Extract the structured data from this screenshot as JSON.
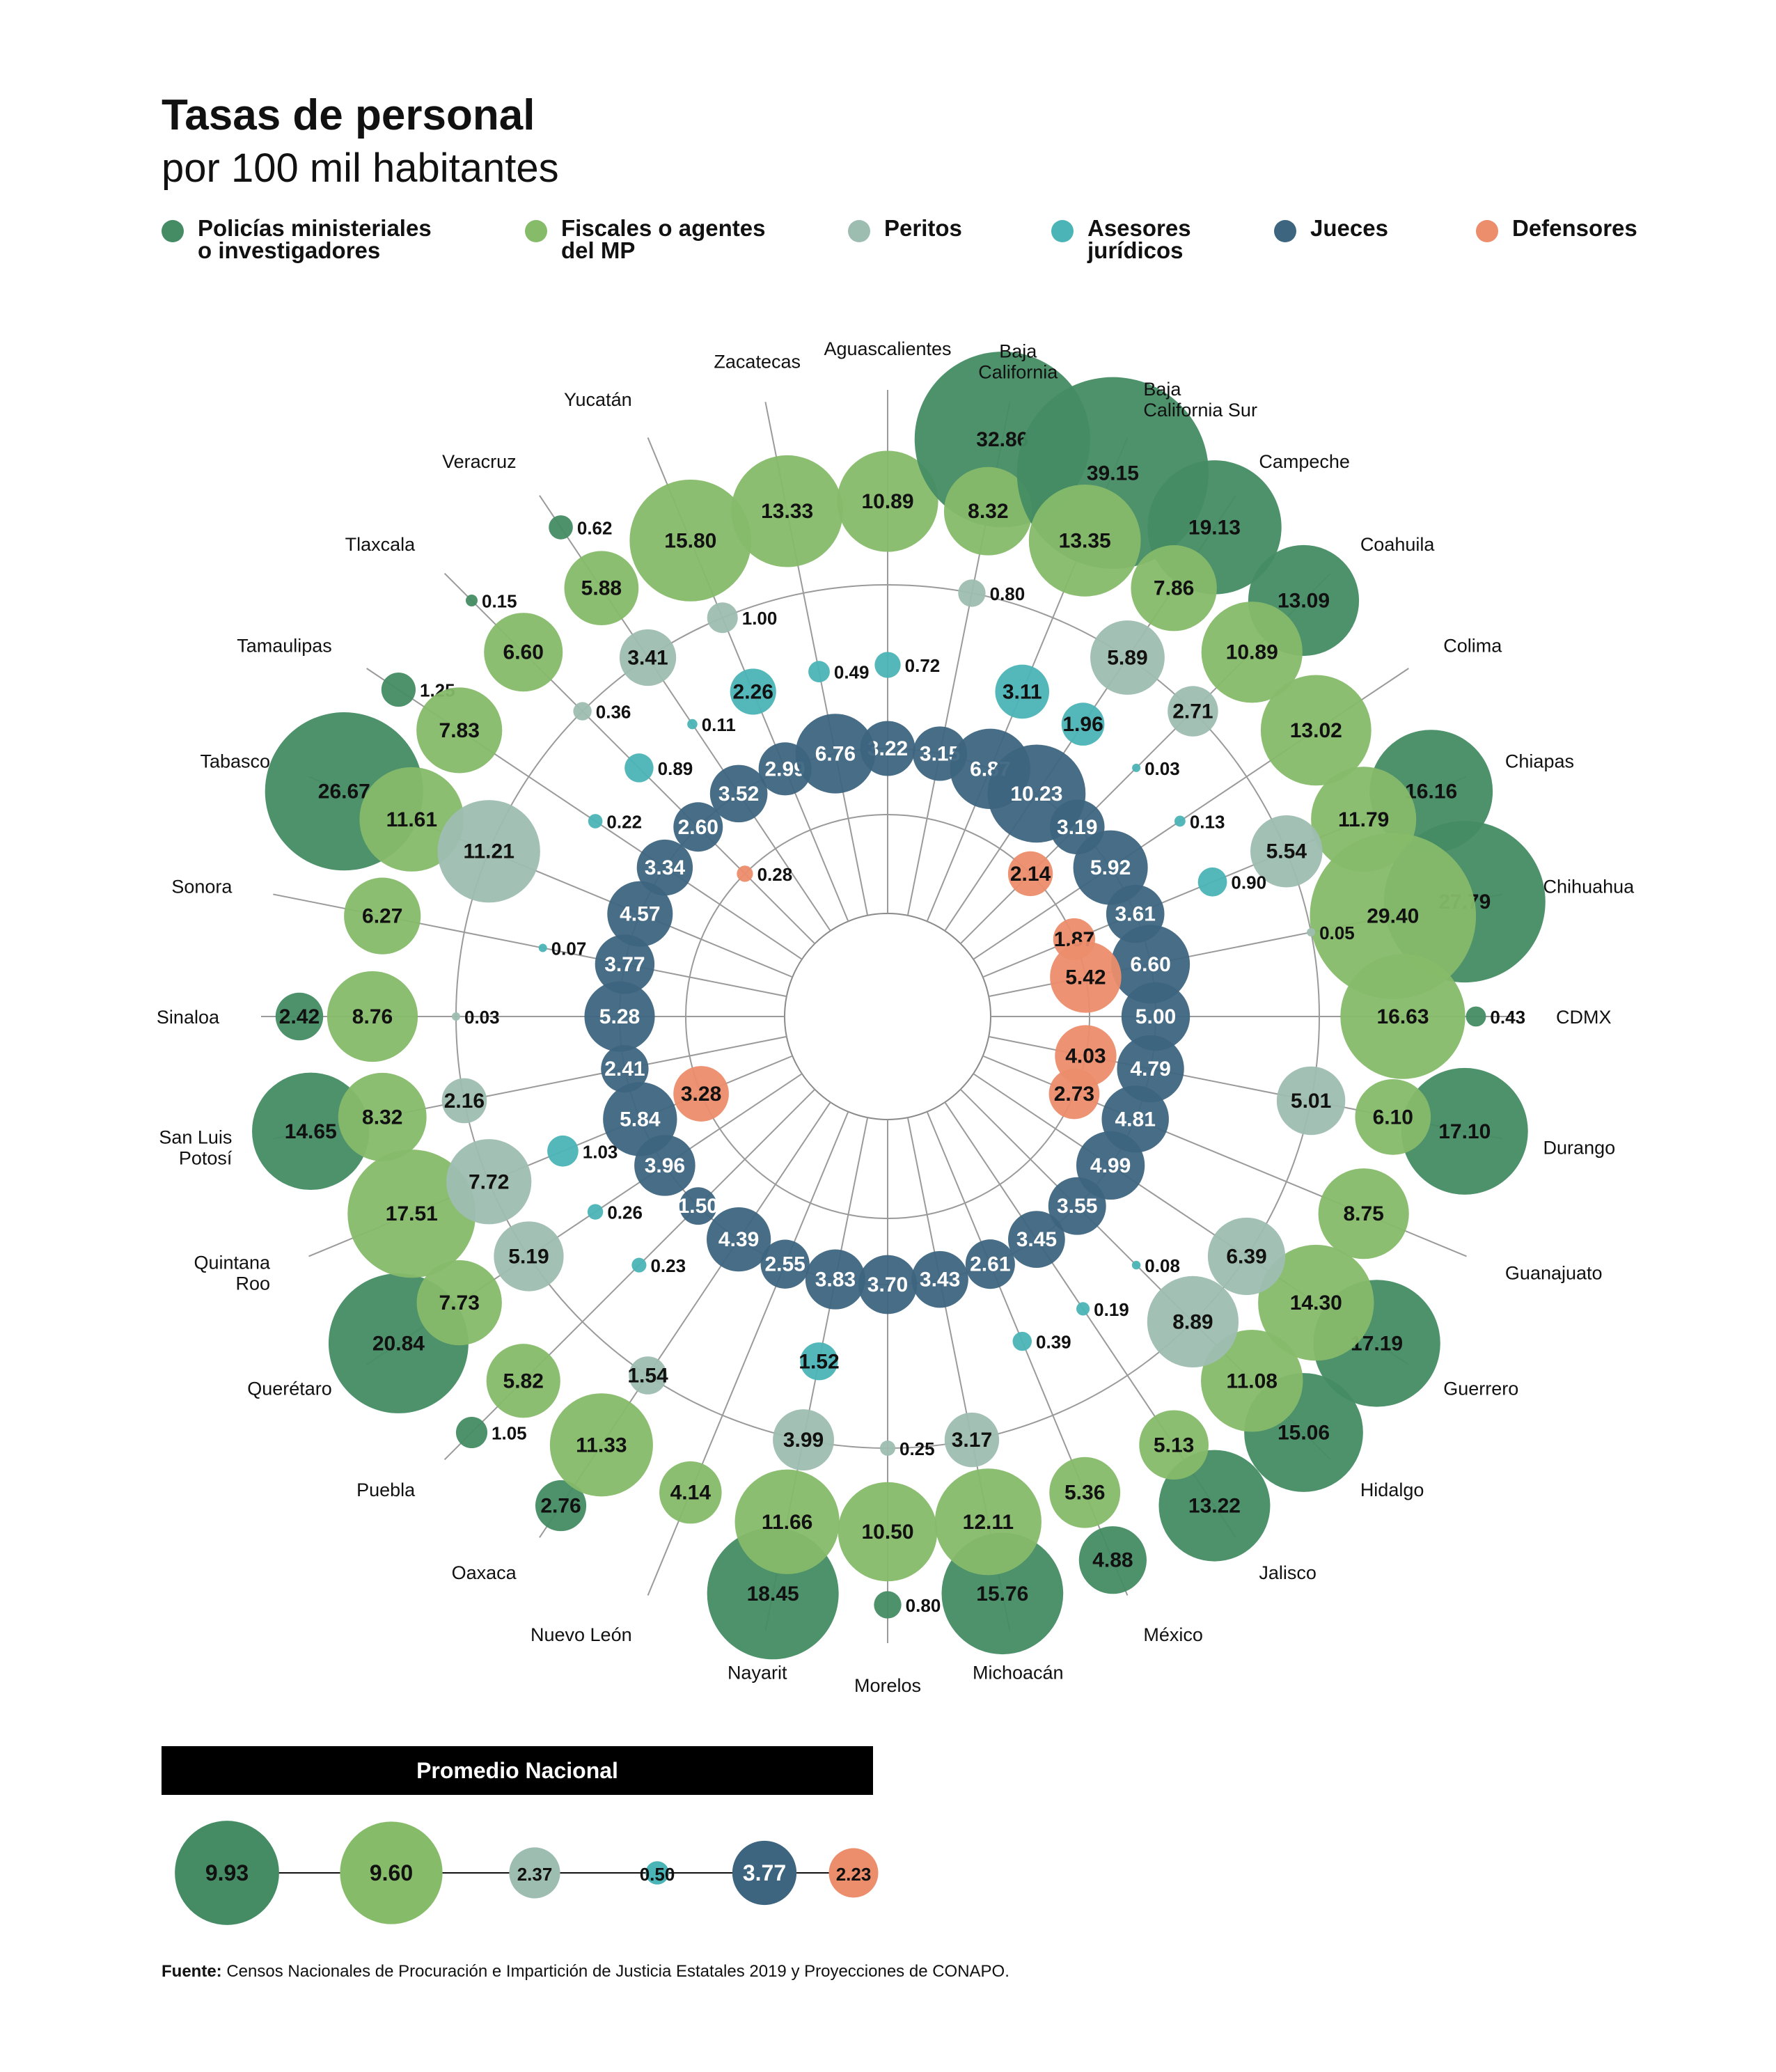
{
  "title": "Tasas de personal",
  "subtitle": "por 100 mil habitantes",
  "legend": [
    {
      "key": "policias",
      "label": "Policías ministeriales\no investigadores",
      "color": "#458c64"
    },
    {
      "key": "fiscales",
      "label": "Fiscales o agentes\ndel MP",
      "color": "#86bb6a"
    },
    {
      "key": "peritos",
      "label": "Peritos",
      "color": "#9ebdb1"
    },
    {
      "key": "asesores",
      "label": "Asesores\njurídicos",
      "color": "#4bb4b6"
    },
    {
      "key": "jueces",
      "label": "Jueces",
      "color": "#3e6580"
    },
    {
      "key": "defensores",
      "label": "Defensores",
      "color": "#ec8d6c"
    }
  ],
  "chart_data": {
    "type": "radial bubble",
    "series": [
      "Policías ministeriales o investigadores",
      "Fiscales o agentes del MP",
      "Peritos",
      "Asesores jurídicos",
      "Jueces",
      "Defensores"
    ],
    "states": [
      {
        "name": "Aguascalientes",
        "values": {
          "policias": null,
          "fiscales": 10.89,
          "peritos": null,
          "asesores": 0.72,
          "jueces": 3.22,
          "defensores": null
        }
      },
      {
        "name": "Baja\nCalifornia",
        "values": {
          "policias": 32.86,
          "fiscales": 8.32,
          "peritos": 0.8,
          "asesores": null,
          "jueces": 3.15,
          "defensores": null
        }
      },
      {
        "name": "Baja\nCalifornia Sur",
        "values": {
          "policias": 39.15,
          "fiscales": 13.35,
          "peritos": null,
          "asesores": 3.11,
          "jueces": 6.87,
          "defensores": null
        }
      },
      {
        "name": "Campeche",
        "values": {
          "policias": 19.13,
          "fiscales": 7.86,
          "peritos": 5.89,
          "asesores": 1.96,
          "jueces": 10.23,
          "defensores": null
        }
      },
      {
        "name": "Coahuila",
        "values": {
          "policias": 13.09,
          "fiscales": 10.89,
          "peritos": 2.71,
          "asesores": 0.03,
          "jueces": 3.19,
          "defensores": 2.14
        }
      },
      {
        "name": "Colima",
        "values": {
          "policias": null,
          "fiscales": 13.02,
          "peritos": null,
          "asesores": 0.13,
          "jueces": 5.92,
          "defensores": null
        }
      },
      {
        "name": "Chiapas",
        "values": {
          "policias": 16.16,
          "fiscales": 11.79,
          "peritos": 5.54,
          "asesores": 0.9,
          "jueces": 3.61,
          "defensores": 1.87
        }
      },
      {
        "name": "Chihuahua",
        "values": {
          "policias": 27.79,
          "fiscales": 29.4,
          "peritos": 0.05,
          "asesores": null,
          "jueces": 6.6,
          "defensores": 5.42
        }
      },
      {
        "name": "CDMX",
        "values": {
          "policias": 0.43,
          "fiscales": 16.63,
          "peritos": null,
          "asesores": null,
          "jueces": 5.0,
          "defensores": null
        }
      },
      {
        "name": "Durango",
        "values": {
          "policias": 17.1,
          "fiscales": 6.1,
          "peritos": 5.01,
          "asesores": null,
          "jueces": 4.79,
          "defensores": 4.03
        }
      },
      {
        "name": "Guanajuato",
        "values": {
          "policias": null,
          "fiscales": 8.75,
          "peritos": null,
          "asesores": null,
          "jueces": 4.81,
          "defensores": 2.73
        }
      },
      {
        "name": "Guerrero",
        "values": {
          "policias": 17.19,
          "fiscales": 14.3,
          "peritos": 6.39,
          "asesores": null,
          "jueces": 4.99,
          "defensores": null
        }
      },
      {
        "name": "Hidalgo",
        "values": {
          "policias": 15.06,
          "fiscales": 11.08,
          "peritos": 8.89,
          "asesores": 0.08,
          "jueces": 3.55,
          "defensores": null
        }
      },
      {
        "name": "Jalisco",
        "values": {
          "policias": 13.22,
          "fiscales": 5.13,
          "peritos": null,
          "asesores": 0.19,
          "jueces": 3.45,
          "defensores": null
        }
      },
      {
        "name": "México",
        "values": {
          "policias": 4.88,
          "fiscales": 5.36,
          "peritos": null,
          "asesores": 0.39,
          "jueces": 2.61,
          "defensores": null
        }
      },
      {
        "name": "Michoacán",
        "values": {
          "policias": 15.76,
          "fiscales": 12.11,
          "peritos": 3.17,
          "asesores": null,
          "jueces": 3.43,
          "defensores": null
        }
      },
      {
        "name": "Morelos",
        "values": {
          "policias": 0.8,
          "fiscales": 10.5,
          "peritos": 0.25,
          "asesores": null,
          "jueces": 3.7,
          "defensores": null
        }
      },
      {
        "name": "Nayarit",
        "values": {
          "policias": 18.45,
          "fiscales": 11.66,
          "peritos": 3.99,
          "asesores": 1.52,
          "jueces": 3.83,
          "defensores": null
        }
      },
      {
        "name": "Nuevo León",
        "values": {
          "policias": null,
          "fiscales": 4.14,
          "peritos": null,
          "asesores": null,
          "jueces": 2.55,
          "defensores": null
        }
      },
      {
        "name": "Oaxaca",
        "values": {
          "policias": 2.76,
          "fiscales": 11.33,
          "peritos": 1.54,
          "asesores": null,
          "jueces": 4.39,
          "defensores": null
        }
      },
      {
        "name": "Puebla",
        "values": {
          "policias": 1.05,
          "fiscales": 5.82,
          "peritos": null,
          "asesores": 0.23,
          "jueces": 1.5,
          "defensores": null
        }
      },
      {
        "name": "Querétaro",
        "values": {
          "policias": 20.84,
          "fiscales": 7.73,
          "peritos": 5.19,
          "asesores": 0.26,
          "jueces": 3.96,
          "defensores": null
        }
      },
      {
        "name": "Quintana\nRoo",
        "values": {
          "policias": null,
          "fiscales": 17.51,
          "peritos": 7.72,
          "asesores": 1.03,
          "jueces": 5.84,
          "defensores": 3.28
        }
      },
      {
        "name": "San Luis\nPotosí",
        "values": {
          "policias": 14.65,
          "fiscales": 8.32,
          "peritos": 2.16,
          "asesores": null,
          "jueces": 2.41,
          "defensores": null
        }
      },
      {
        "name": "Sinaloa",
        "values": {
          "policias": 2.42,
          "fiscales": 8.76,
          "peritos": 0.03,
          "asesores": null,
          "jueces": 5.28,
          "defensores": null
        }
      },
      {
        "name": "Sonora",
        "values": {
          "policias": null,
          "fiscales": 6.27,
          "peritos": null,
          "asesores": 0.07,
          "jueces": 3.77,
          "defensores": null
        }
      },
      {
        "name": "Tabasco",
        "values": {
          "policias": 26.67,
          "fiscales": 11.61,
          "peritos": 11.21,
          "asesores": null,
          "jueces": 4.57,
          "defensores": null
        }
      },
      {
        "name": "Tamaulipas",
        "values": {
          "policias": 1.25,
          "fiscales": 7.83,
          "peritos": null,
          "asesores": 0.22,
          "jueces": 3.34,
          "defensores": null
        }
      },
      {
        "name": "Tlaxcala",
        "values": {
          "policias": 0.15,
          "fiscales": 6.6,
          "peritos": 0.36,
          "asesores": 0.89,
          "jueces": 2.6,
          "defensores": 0.28
        }
      },
      {
        "name": "Veracruz",
        "values": {
          "policias": 0.62,
          "fiscales": 5.88,
          "peritos": 3.41,
          "asesores": 0.11,
          "jueces": 3.52,
          "defensores": null
        }
      },
      {
        "name": "Yucatán",
        "values": {
          "policias": null,
          "fiscales": 15.8,
          "peritos": 1.0,
          "asesores": 2.26,
          "jueces": 2.99,
          "defensores": null
        }
      },
      {
        "name": "Zacatecas",
        "values": {
          "policias": null,
          "fiscales": 13.33,
          "peritos": null,
          "asesores": 0.49,
          "jueces": 6.76,
          "defensores": null
        }
      }
    ],
    "national_average": {
      "title": "Promedio Nacional",
      "values": [
        9.93,
        9.6,
        2.37,
        0.5,
        3.77,
        2.23
      ]
    }
  },
  "source": {
    "label": "Fuente:",
    "text": " Censos Nacionales de Procuración e Impartición de Justicia Estatales 2019 y Proyecciones de CONAPO."
  }
}
